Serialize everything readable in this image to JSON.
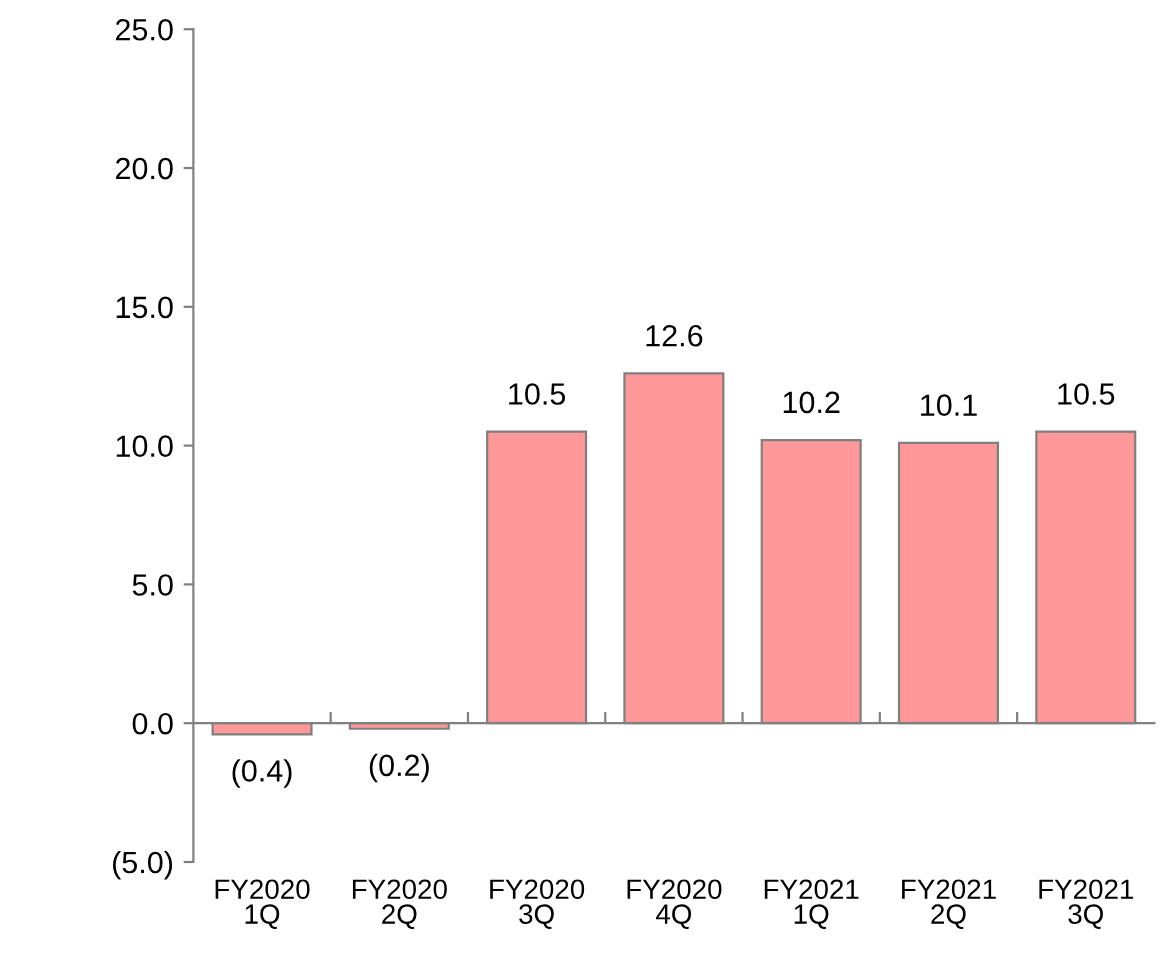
{
  "chart_data": {
    "type": "bar",
    "categories": [
      "FY2020\n1Q",
      "FY2020\n2Q",
      "FY2020\n3Q",
      "FY2020\n4Q",
      "FY2021\n1Q",
      "FY2021\n2Q",
      "FY2021\n3Q"
    ],
    "values": [
      -0.4,
      -0.2,
      10.5,
      12.6,
      10.2,
      10.1,
      10.5
    ],
    "value_labels": [
      "(0.4)",
      "(0.2)",
      "10.5",
      "12.6",
      "10.2",
      "10.1",
      "10.5"
    ],
    "color": "#ff9999",
    "ylim": [
      -5,
      25
    ],
    "yticks": [
      {
        "value": -5,
        "label": "(5.0)"
      },
      {
        "value": 0,
        "label": "0.0"
      },
      {
        "value": 5,
        "label": "5.0"
      },
      {
        "value": 10,
        "label": "10.0"
      },
      {
        "value": 15,
        "label": "15.0"
      },
      {
        "value": 20,
        "label": "20.0"
      },
      {
        "value": 25,
        "label": "25.0"
      }
    ],
    "legend": false
  }
}
